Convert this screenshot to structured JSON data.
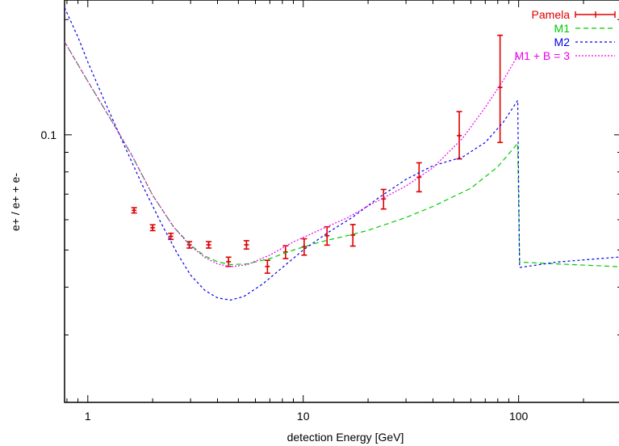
{
  "chart_data": {
    "type": "line",
    "xlabel": "detection Energy [GeV]",
    "ylabel": "e+ / e+ + e-",
    "xscale": "log",
    "yscale": "log",
    "xlim": [
      0.78,
      300
    ],
    "ylim": [
      0.02,
      0.225
    ],
    "x_ticks": [
      {
        "value": 1,
        "label": "1"
      },
      {
        "value": 10,
        "label": "10"
      },
      {
        "value": 100,
        "label": "100"
      }
    ],
    "y_ticks": [
      {
        "value": 0.1,
        "label": "0.1"
      }
    ],
    "legend": {
      "position": "top-right"
    },
    "series": [
      {
        "name": "Pamela",
        "kind": "errorbar",
        "color": "#dd0000",
        "points": [
          {
            "x": 1.64,
            "y": 0.0635,
            "lo": 0.0625,
            "hi": 0.0645
          },
          {
            "x": 2.0,
            "y": 0.0572,
            "lo": 0.0562,
            "hi": 0.0582
          },
          {
            "x": 2.43,
            "y": 0.0543,
            "lo": 0.0533,
            "hi": 0.0553
          },
          {
            "x": 2.96,
            "y": 0.0516,
            "lo": 0.0506,
            "hi": 0.0526
          },
          {
            "x": 3.64,
            "y": 0.0516,
            "lo": 0.0506,
            "hi": 0.0526
          },
          {
            "x": 4.5,
            "y": 0.0466,
            "lo": 0.0453,
            "hi": 0.0479
          },
          {
            "x": 5.45,
            "y": 0.0516,
            "lo": 0.0503,
            "hi": 0.0529
          },
          {
            "x": 6.82,
            "y": 0.0453,
            "lo": 0.0435,
            "hi": 0.047
          },
          {
            "x": 8.28,
            "y": 0.0494,
            "lo": 0.0475,
            "hi": 0.0513
          },
          {
            "x": 10.1,
            "y": 0.051,
            "lo": 0.0485,
            "hi": 0.0535
          },
          {
            "x": 12.9,
            "y": 0.0545,
            "lo": 0.0515,
            "hi": 0.0575
          },
          {
            "x": 17.0,
            "y": 0.0547,
            "lo": 0.0512,
            "hi": 0.0583
          },
          {
            "x": 23.6,
            "y": 0.068,
            "lo": 0.064,
            "hi": 0.072
          },
          {
            "x": 34.5,
            "y": 0.0775,
            "lo": 0.071,
            "hi": 0.0845
          },
          {
            "x": 53.0,
            "y": 0.0995,
            "lo": 0.0865,
            "hi": 0.115
          },
          {
            "x": 82.0,
            "y": 0.133,
            "lo": 0.0955,
            "hi": 0.182
          }
        ]
      },
      {
        "name": "M1",
        "kind": "line",
        "color": "#00cc00",
        "dash": "6,4",
        "points": [
          {
            "x": 0.78,
            "y": 0.175
          },
          {
            "x": 1.0,
            "y": 0.138
          },
          {
            "x": 1.3,
            "y": 0.108
          },
          {
            "x": 1.6,
            "y": 0.0885
          },
          {
            "x": 2.0,
            "y": 0.0695
          },
          {
            "x": 2.5,
            "y": 0.0575
          },
          {
            "x": 3.0,
            "y": 0.0515
          },
          {
            "x": 3.5,
            "y": 0.0482
          },
          {
            "x": 4.0,
            "y": 0.0466
          },
          {
            "x": 4.6,
            "y": 0.0458
          },
          {
            "x": 5.5,
            "y": 0.046
          },
          {
            "x": 7.0,
            "y": 0.0475
          },
          {
            "x": 9.0,
            "y": 0.05
          },
          {
            "x": 12.0,
            "y": 0.0525
          },
          {
            "x": 16.0,
            "y": 0.0545
          },
          {
            "x": 20.0,
            "y": 0.0563
          },
          {
            "x": 30.0,
            "y": 0.0608
          },
          {
            "x": 40.0,
            "y": 0.065
          },
          {
            "x": 60.0,
            "y": 0.0725
          },
          {
            "x": 80.0,
            "y": 0.0825
          },
          {
            "x": 99.0,
            "y": 0.095
          },
          {
            "x": 101.0,
            "y": 0.0465
          },
          {
            "x": 150.0,
            "y": 0.046
          },
          {
            "x": 300.0,
            "y": 0.0452
          }
        ]
      },
      {
        "name": "M2",
        "kind": "line",
        "color": "#0000ee",
        "dash": "3,3",
        "points": [
          {
            "x": 0.78,
            "y": 0.215
          },
          {
            "x": 0.9,
            "y": 0.18
          },
          {
            "x": 1.0,
            "y": 0.155
          },
          {
            "x": 1.2,
            "y": 0.122
          },
          {
            "x": 1.5,
            "y": 0.092
          },
          {
            "x": 1.8,
            "y": 0.0735
          },
          {
            "x": 2.2,
            "y": 0.0585
          },
          {
            "x": 2.6,
            "y": 0.049
          },
          {
            "x": 3.0,
            "y": 0.043
          },
          {
            "x": 3.5,
            "y": 0.0392
          },
          {
            "x": 4.0,
            "y": 0.0375
          },
          {
            "x": 4.6,
            "y": 0.037
          },
          {
            "x": 5.3,
            "y": 0.0378
          },
          {
            "x": 6.5,
            "y": 0.0408
          },
          {
            "x": 8.0,
            "y": 0.045
          },
          {
            "x": 10.0,
            "y": 0.05
          },
          {
            "x": 13.0,
            "y": 0.0555
          },
          {
            "x": 17.0,
            "y": 0.061
          },
          {
            "x": 22.0,
            "y": 0.068
          },
          {
            "x": 30.0,
            "y": 0.0765
          },
          {
            "x": 40.0,
            "y": 0.083
          },
          {
            "x": 55.0,
            "y": 0.0875
          },
          {
            "x": 70.0,
            "y": 0.0955
          },
          {
            "x": 85.0,
            "y": 0.108
          },
          {
            "x": 99.0,
            "y": 0.123
          },
          {
            "x": 101.0,
            "y": 0.045
          },
          {
            "x": 150.0,
            "y": 0.0465
          },
          {
            "x": 300.0,
            "y": 0.048
          }
        ]
      },
      {
        "name": "M1 + B = 3",
        "kind": "line",
        "color": "#ee00ee",
        "dash": "2,2",
        "points": [
          {
            "x": 0.78,
            "y": 0.175
          },
          {
            "x": 1.0,
            "y": 0.138
          },
          {
            "x": 1.3,
            "y": 0.108
          },
          {
            "x": 1.6,
            "y": 0.0885
          },
          {
            "x": 2.0,
            "y": 0.0695
          },
          {
            "x": 2.5,
            "y": 0.0575
          },
          {
            "x": 3.0,
            "y": 0.0512
          },
          {
            "x": 3.5,
            "y": 0.0478
          },
          {
            "x": 4.0,
            "y": 0.046
          },
          {
            "x": 4.6,
            "y": 0.0452
          },
          {
            "x": 5.5,
            "y": 0.0458
          },
          {
            "x": 7.0,
            "y": 0.0485
          },
          {
            "x": 9.0,
            "y": 0.0525
          },
          {
            "x": 12.0,
            "y": 0.0565
          },
          {
            "x": 16.0,
            "y": 0.0607
          },
          {
            "x": 20.0,
            "y": 0.0652
          },
          {
            "x": 30.0,
            "y": 0.0735
          },
          {
            "x": 40.0,
            "y": 0.082
          },
          {
            "x": 55.0,
            "y": 0.098
          },
          {
            "x": 70.0,
            "y": 0.118
          },
          {
            "x": 85.0,
            "y": 0.139
          },
          {
            "x": 99.0,
            "y": 0.161
          }
        ]
      }
    ]
  }
}
